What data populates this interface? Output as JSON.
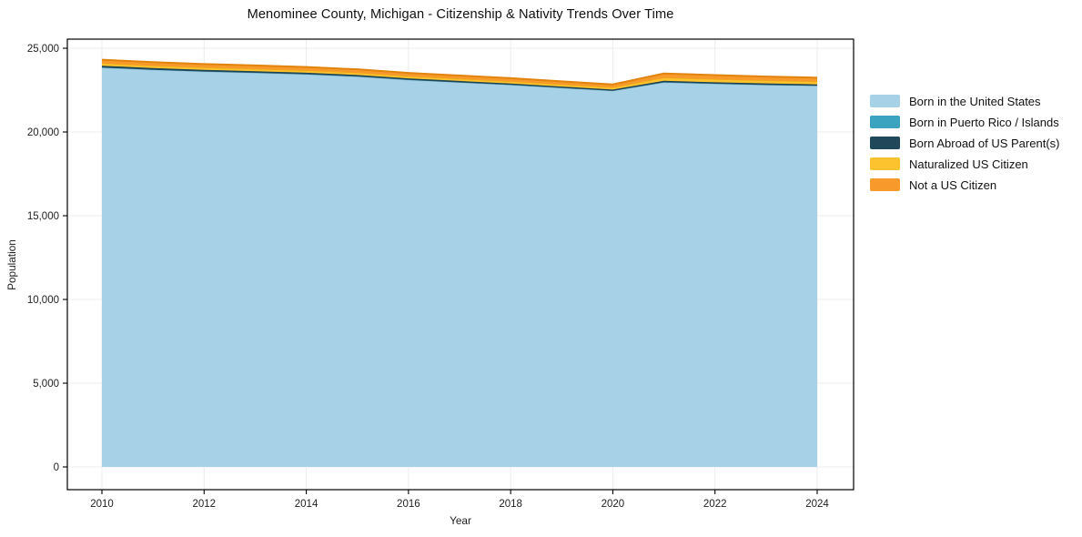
{
  "title": "Menominee County, Michigan - Citizenship & Nativity Trends Over Time",
  "chart_data": {
    "type": "area",
    "stacked": true,
    "title": "Menominee County, Michigan - Citizenship & Nativity Trends Over Time",
    "xlabel": "Year",
    "ylabel": "Population",
    "grid": true,
    "legend_position": "right",
    "x": [
      2010,
      2011,
      2012,
      2013,
      2014,
      2015,
      2016,
      2017,
      2018,
      2019,
      2020,
      2021,
      2022,
      2023,
      2024
    ],
    "xticks": [
      2010,
      2012,
      2014,
      2016,
      2018,
      2020,
      2022,
      2024
    ],
    "xtick_labels": [
      "2010",
      "2012",
      "2014",
      "2016",
      "2018",
      "2020",
      "2022",
      "2024"
    ],
    "yticks": [
      0,
      5000,
      10000,
      15000,
      20000,
      25000
    ],
    "ytick_labels": [
      "0",
      "5,000",
      "10,000",
      "15,000",
      "20,000",
      "25,000"
    ],
    "ylim": [
      -1400,
      25500
    ],
    "xlim": [
      2009.33,
      2024.67
    ],
    "series": [
      {
        "name": "Born in the United States",
        "color": "#a6d1e6",
        "edge_color": "#8fc2da",
        "values": [
          23830,
          23700,
          23600,
          23520,
          23430,
          23300,
          23100,
          22950,
          22800,
          22620,
          22450,
          22950,
          22870,
          22800,
          22750
        ]
      },
      {
        "name": "Born in Puerto Rico / Islands",
        "color": "#3ba3c0",
        "edge_color": "#3ba3c0",
        "values": [
          15,
          12,
          10,
          10,
          12,
          10,
          10,
          8,
          10,
          8,
          5,
          10,
          10,
          8,
          8
        ]
      },
      {
        "name": "Born Abroad of US Parent(s)",
        "color": "#20485a",
        "edge_color": "#1b4254",
        "values": [
          110,
          105,
          100,
          100,
          95,
          95,
          90,
          90,
          85,
          85,
          80,
          95,
          90,
          90,
          85
        ]
      },
      {
        "name": "Naturalized US Citizen",
        "color": "#fcc32f",
        "edge_color": "#eaaf14",
        "values": [
          140,
          138,
          135,
          135,
          132,
          130,
          128,
          125,
          122,
          120,
          118,
          185,
          178,
          170,
          165
        ]
      },
      {
        "name": "Not a US Citizen",
        "color": "#f8992b",
        "edge_color": "#e2830e",
        "values": [
          220,
          215,
          212,
          210,
          208,
          205,
          200,
          198,
          195,
          190,
          185,
          255,
          248,
          240,
          235
        ]
      }
    ],
    "colors": {
      "grid": "#ececec",
      "spine": "#000000",
      "tick_text": "#222222"
    }
  }
}
